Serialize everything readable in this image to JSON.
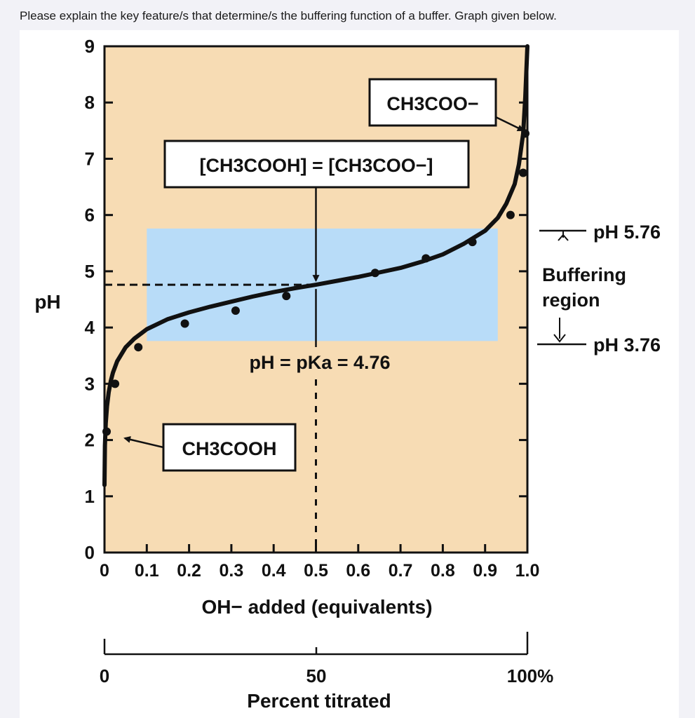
{
  "question": "Please explain the key feature/s that determine/s the buffering function of a buffer. Graph given below.",
  "chart_data": {
    "type": "line",
    "xlabel": "OH− added (equivalents)",
    "ylabel": "pH",
    "xlim": [
      0,
      1.0
    ],
    "ylim": [
      0,
      9
    ],
    "x_ticks": [
      "0",
      "0.1",
      "0.2",
      "0.3",
      "0.4",
      "0.5",
      "0.6",
      "0.7",
      "0.8",
      "0.9",
      "1.0"
    ],
    "y_ticks": [
      "0",
      "1",
      "2",
      "3",
      "4",
      "5",
      "6",
      "7",
      "8",
      "9"
    ],
    "secondary_axis": {
      "label": "Percent titrated",
      "ticks": [
        "0",
        "50",
        "100%"
      ]
    },
    "series": [
      {
        "x": [
          0,
          0.001,
          0.003,
          0.006,
          0.01,
          0.015,
          0.02,
          0.03,
          0.05,
          0.07,
          0.1,
          0.15,
          0.2,
          0.25,
          0.3,
          0.35,
          0.4,
          0.45,
          0.5,
          0.55,
          0.6,
          0.65,
          0.7,
          0.75,
          0.8,
          0.85,
          0.9,
          0.93,
          0.95,
          0.97,
          0.98,
          0.99,
          0.995,
          1.0
        ],
        "y": [
          1.2,
          1.9,
          2.3,
          2.6,
          2.85,
          3.05,
          3.2,
          3.4,
          3.65,
          3.8,
          3.97,
          4.15,
          4.27,
          4.37,
          4.46,
          4.55,
          4.63,
          4.7,
          4.76,
          4.83,
          4.9,
          4.98,
          5.06,
          5.17,
          5.3,
          5.49,
          5.72,
          5.95,
          6.2,
          6.55,
          6.9,
          7.45,
          8.1,
          9.0
        ]
      }
    ],
    "data_points": [
      {
        "x": 0.005,
        "y": 2.15
      },
      {
        "x": 0.025,
        "y": 3.0
      },
      {
        "x": 0.08,
        "y": 3.65
      },
      {
        "x": 0.19,
        "y": 4.07
      },
      {
        "x": 0.31,
        "y": 4.3
      },
      {
        "x": 0.43,
        "y": 4.56
      },
      {
        "x": 0.64,
        "y": 4.97
      },
      {
        "x": 0.76,
        "y": 5.23
      },
      {
        "x": 0.87,
        "y": 5.52
      },
      {
        "x": 0.96,
        "y": 6.0
      },
      {
        "x": 0.99,
        "y": 6.75
      },
      {
        "x": 0.995,
        "y": 7.45
      }
    ],
    "buffer_region": {
      "x_range": [
        0.1,
        0.93
      ],
      "y_range": [
        3.76,
        5.76
      ]
    },
    "pka_line": {
      "x": 0.5,
      "y": 4.76
    },
    "annotations": {
      "weak_acid": "CH3COOH",
      "conjugate_base": "CH3COO−",
      "equal_conc": "[CH3COOH] = [CH3COO−]",
      "pka_label": "pH = pKa = 4.76",
      "upper_ph": "pH 5.76",
      "lower_ph": "pH 3.76",
      "region_line1": "Buffering",
      "region_line2": "region"
    },
    "colors": {
      "plot_bg": "#f7dcb4",
      "buffer_region": "#b8dcf8",
      "curve": "#111111"
    },
    "grid": false
  }
}
